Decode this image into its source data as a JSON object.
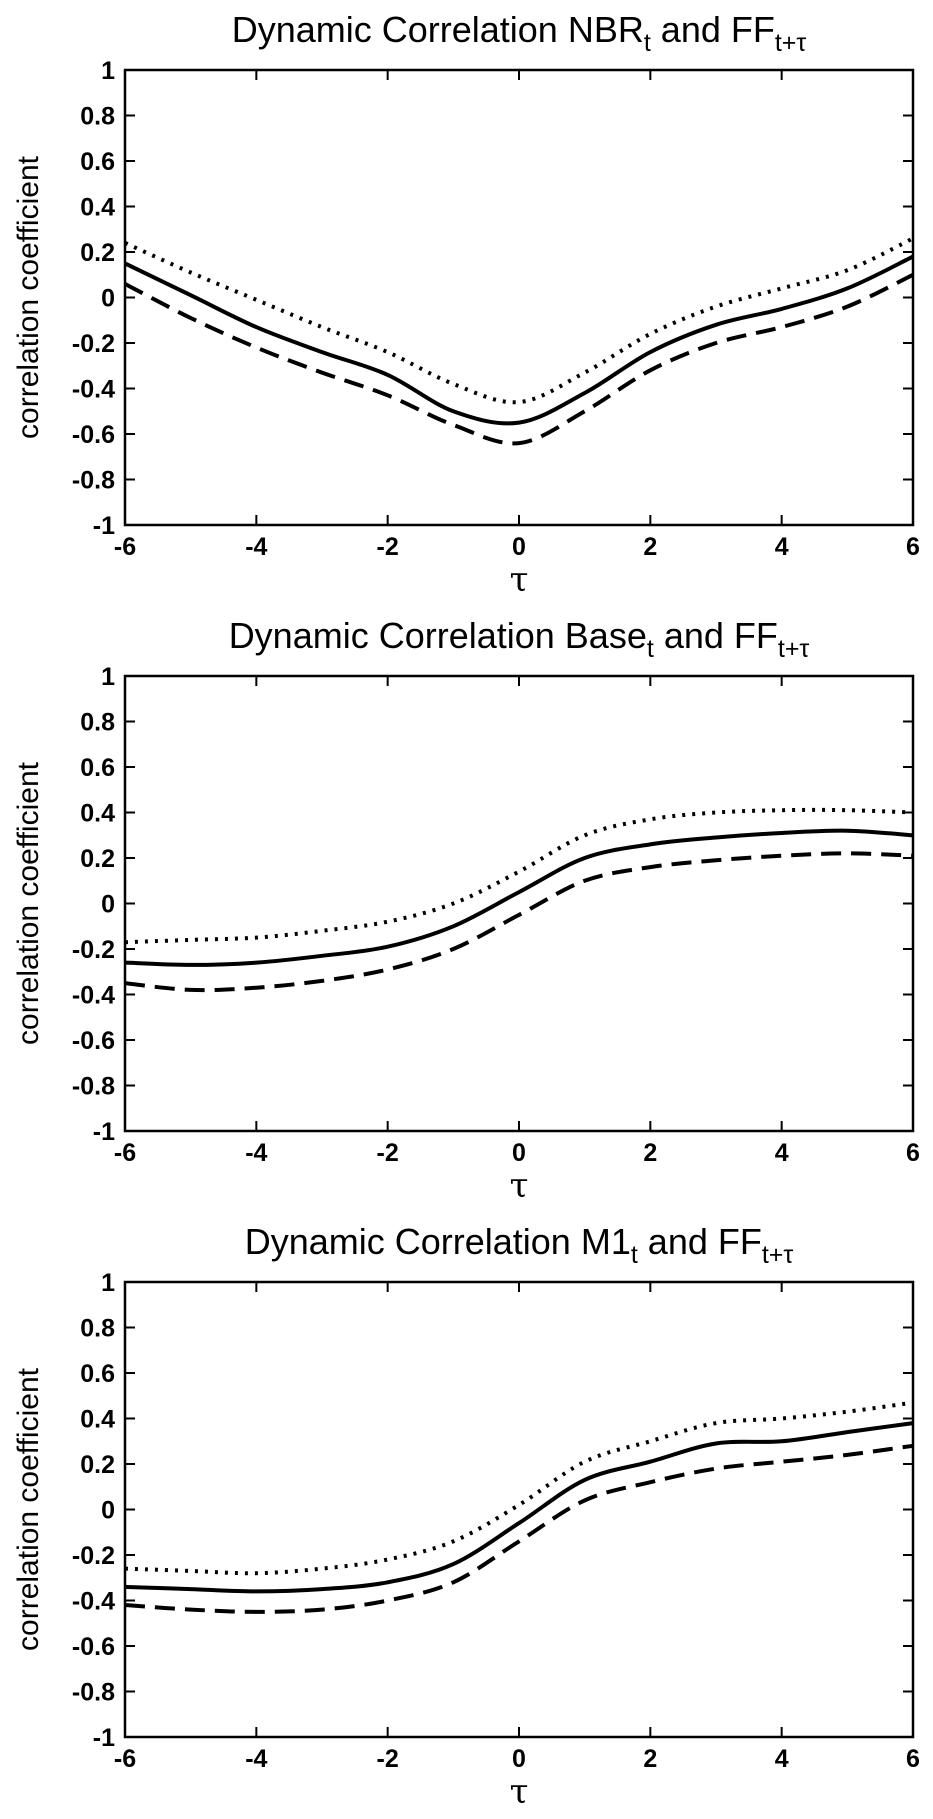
{
  "chart_data": [
    {
      "type": "line",
      "title": "Dynamic Correlation NBR",
      "title_sub1": "t",
      "title_mid": " and FF",
      "title_sub2": "t+τ",
      "xlabel": "τ",
      "ylabel": "correlation coefficient",
      "xlim": [
        -6,
        6
      ],
      "ylim": [
        -1,
        1
      ],
      "xticks": [
        "-6",
        "-4",
        "-2",
        "0",
        "2",
        "4",
        "6"
      ],
      "yticks": [
        "1",
        "0.8",
        "0.6",
        "0.4",
        "0.2",
        "0",
        "-0.2",
        "-0.4",
        "-0.6",
        "-0.8",
        "-1"
      ],
      "grid": false,
      "x": [
        -6,
        -5,
        -4,
        -3,
        -2,
        -1,
        0,
        1,
        2,
        3,
        4,
        5,
        6
      ],
      "series": [
        {
          "style": "dotted",
          "values": [
            0.24,
            0.11,
            -0.01,
            -0.13,
            -0.24,
            -0.38,
            -0.46,
            -0.33,
            -0.16,
            -0.04,
            0.04,
            0.12,
            0.26
          ]
        },
        {
          "style": "solid",
          "values": [
            0.15,
            0.01,
            -0.13,
            -0.24,
            -0.34,
            -0.5,
            -0.55,
            -0.42,
            -0.24,
            -0.12,
            -0.05,
            0.04,
            0.18
          ]
        },
        {
          "style": "dashed",
          "values": [
            0.06,
            -0.09,
            -0.22,
            -0.33,
            -0.43,
            -0.56,
            -0.64,
            -0.5,
            -0.32,
            -0.2,
            -0.13,
            -0.04,
            0.1
          ]
        }
      ]
    },
    {
      "type": "line",
      "title": "Dynamic Correlation Base",
      "title_sub1": "t",
      "title_mid": " and FF",
      "title_sub2": "t+τ",
      "xlabel": "τ",
      "ylabel": "correlation coefficient",
      "xlim": [
        -6,
        6
      ],
      "ylim": [
        -1,
        1
      ],
      "xticks": [
        "-6",
        "-4",
        "-2",
        "0",
        "2",
        "4",
        "6"
      ],
      "yticks": [
        "1",
        "0.8",
        "0.6",
        "0.4",
        "0.2",
        "0",
        "-0.2",
        "-0.4",
        "-0.6",
        "-0.8",
        "-1"
      ],
      "grid": false,
      "x": [
        -6,
        -5,
        -4,
        -3,
        -2,
        -1,
        0,
        1,
        2,
        3,
        4,
        5,
        6
      ],
      "series": [
        {
          "style": "dotted",
          "values": [
            -0.17,
            -0.16,
            -0.15,
            -0.12,
            -0.08,
            0.0,
            0.14,
            0.3,
            0.37,
            0.4,
            0.41,
            0.41,
            0.4
          ]
        },
        {
          "style": "solid",
          "values": [
            -0.26,
            -0.27,
            -0.26,
            -0.23,
            -0.19,
            -0.1,
            0.05,
            0.2,
            0.26,
            0.29,
            0.31,
            0.32,
            0.3
          ]
        },
        {
          "style": "dashed",
          "values": [
            -0.35,
            -0.38,
            -0.37,
            -0.34,
            -0.29,
            -0.2,
            -0.05,
            0.1,
            0.16,
            0.19,
            0.21,
            0.22,
            0.21
          ]
        }
      ]
    },
    {
      "type": "line",
      "title": "Dynamic Correlation M1",
      "title_sub1": "t",
      "title_mid": " and FF",
      "title_sub2": "t+τ",
      "xlabel": "τ",
      "ylabel": "correlation coefficient",
      "xlim": [
        -6,
        6
      ],
      "ylim": [
        -1,
        1
      ],
      "xticks": [
        "-6",
        "-4",
        "-2",
        "0",
        "2",
        "4",
        "6"
      ],
      "yticks": [
        "1",
        "0.8",
        "0.6",
        "0.4",
        "0.2",
        "0",
        "-0.2",
        "-0.4",
        "-0.6",
        "-0.8",
        "-1"
      ],
      "grid": false,
      "x": [
        -6,
        -5,
        -4,
        -3,
        -2,
        -1,
        0,
        1,
        2,
        3,
        4,
        5,
        6
      ],
      "series": [
        {
          "style": "dotted",
          "values": [
            -0.26,
            -0.27,
            -0.28,
            -0.26,
            -0.22,
            -0.14,
            0.02,
            0.21,
            0.3,
            0.38,
            0.4,
            0.43,
            0.47
          ]
        },
        {
          "style": "solid",
          "values": [
            -0.34,
            -0.35,
            -0.36,
            -0.35,
            -0.32,
            -0.24,
            -0.06,
            0.13,
            0.21,
            0.29,
            0.3,
            0.34,
            0.38
          ]
        },
        {
          "style": "dashed",
          "values": [
            -0.42,
            -0.44,
            -0.45,
            -0.44,
            -0.4,
            -0.32,
            -0.14,
            0.04,
            0.12,
            0.18,
            0.21,
            0.24,
            0.28
          ]
        }
      ]
    }
  ]
}
